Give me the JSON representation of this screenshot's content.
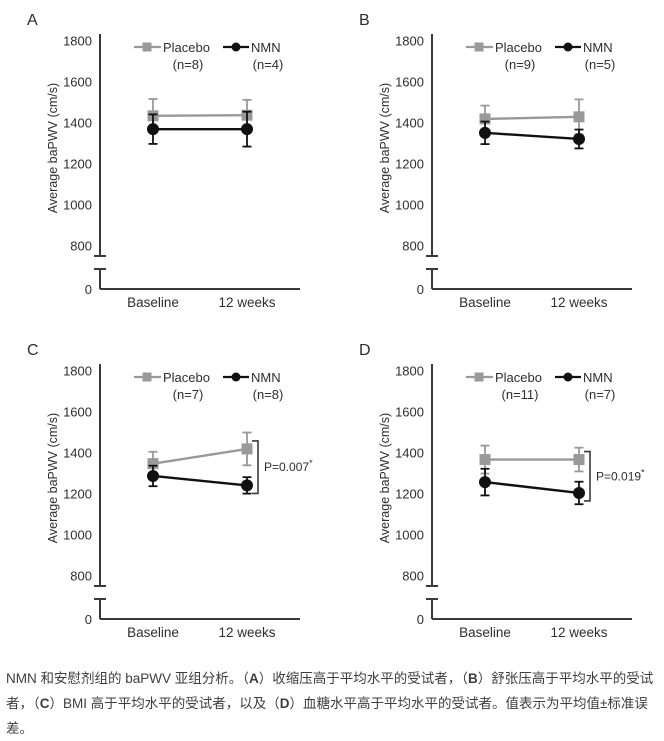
{
  "figure": {
    "background": "#ffffff",
    "caption": {
      "segments": [
        {
          "t": "NMN 和安慰剂组的 baPWV 亚组分析。（",
          "b": false
        },
        {
          "t": "A",
          "b": true
        },
        {
          "t": "）收缩压高于平均水平的受试者，（",
          "b": false
        },
        {
          "t": "B",
          "b": true
        },
        {
          "t": "）舒张压高于平均水平的受试者，（",
          "b": false
        },
        {
          "t": "C",
          "b": true
        },
        {
          "t": "）BMI 高于平均水平的受试者，以及（",
          "b": false
        },
        {
          "t": "D",
          "b": true
        },
        {
          "t": "）血糖水平高于平均水平的受试者。值表示为平均值±标准误差。",
          "b": false
        }
      ]
    }
  },
  "chart_data": {
    "type": "line",
    "shared": {
      "categories": [
        "Baseline",
        "12 weeks"
      ],
      "ylabel": "Average baPWV (cm/s)",
      "yticks": [
        1800,
        1600,
        1400,
        1200,
        1000,
        800
      ],
      "zero_label": "0",
      "ylim_display": [
        800,
        1800
      ],
      "axis_break": true,
      "grid": false,
      "legend_position": "top",
      "colors": {
        "placebo": "#999999",
        "nmn": "#111111",
        "axis": "#3a3a3a",
        "text": "#2e2e2e"
      }
    },
    "panels": [
      {
        "letter": "A",
        "series": [
          {
            "name": "Placebo",
            "n_label": "(n=8)",
            "marker": "square",
            "color_key": "placebo",
            "values": [
              1435,
              1438
            ],
            "errors": [
              82,
              75
            ]
          },
          {
            "name": "NMN",
            "n_label": "(n=4)",
            "marker": "circle",
            "color_key": "nmn",
            "values": [
              1370,
              1370
            ],
            "errors": [
              72,
              85
            ]
          }
        ],
        "p_annotation": null
      },
      {
        "letter": "B",
        "series": [
          {
            "name": "Placebo",
            "n_label": "(n=9)",
            "marker": "square",
            "color_key": "placebo",
            "values": [
              1420,
              1430
            ],
            "errors": [
              65,
              85
            ]
          },
          {
            "name": "NMN",
            "n_label": "(n=5)",
            "marker": "circle",
            "color_key": "nmn",
            "values": [
              1352,
              1322
            ],
            "errors": [
              55,
              46
            ]
          }
        ],
        "p_annotation": null
      },
      {
        "letter": "C",
        "series": [
          {
            "name": "Placebo",
            "n_label": "(n=7)",
            "marker": "square",
            "color_key": "placebo",
            "values": [
              1348,
              1420
            ],
            "errors": [
              58,
              80
            ]
          },
          {
            "name": "NMN",
            "n_label": "(n=8)",
            "marker": "circle",
            "color_key": "nmn",
            "values": [
              1288,
              1242
            ],
            "errors": [
              50,
              40
            ]
          }
        ],
        "p_annotation": {
          "label": "P=0.007",
          "star": "*"
        }
      },
      {
        "letter": "D",
        "series": [
          {
            "name": "Placebo",
            "n_label": "(n=11)",
            "marker": "square",
            "color_key": "placebo",
            "values": [
              1368,
              1368
            ],
            "errors": [
              68,
              58
            ]
          },
          {
            "name": "NMN",
            "n_label": "(n=7)",
            "marker": "circle",
            "color_key": "nmn",
            "values": [
              1258,
              1205
            ],
            "errors": [
              65,
              55
            ]
          }
        ],
        "p_annotation": {
          "label": "P=0.019",
          "star": "*"
        }
      }
    ]
  }
}
